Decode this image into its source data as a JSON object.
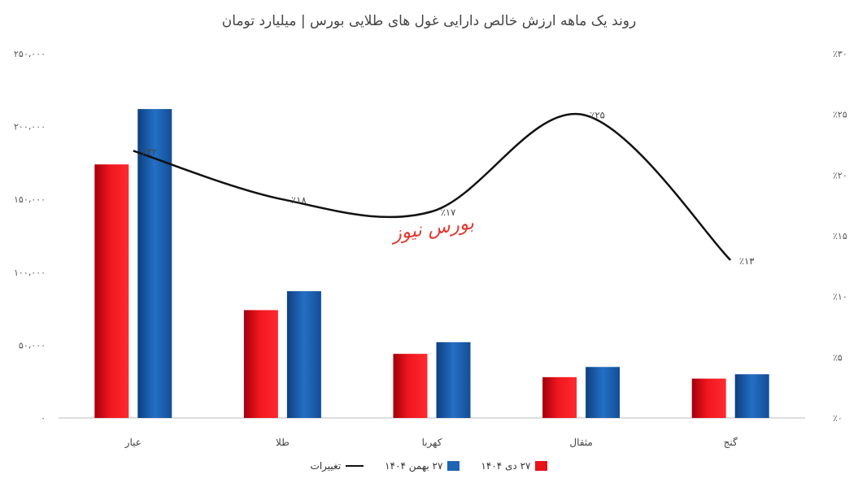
{
  "chart_data": {
    "type": "bar",
    "title": "روند یک ماهه ارزش خالص دارایی غول های طلایی بورس | میلیارد تومان",
    "categories": [
      "عیار",
      "طلا",
      "کهربا",
      "مثقال",
      "گنج"
    ],
    "series": [
      {
        "name": "۲۷ دی ۱۴۰۴",
        "type": "bar",
        "values": [
          174000,
          74000,
          44000,
          28000,
          27000
        ],
        "color": "#e8141c"
      },
      {
        "name": "۲۷ بهمن ۱۴۰۴",
        "type": "bar",
        "values": [
          212000,
          87000,
          52000,
          35000,
          30000
        ],
        "color": "#1f63b5"
      },
      {
        "name": "تغییرات",
        "type": "line",
        "axis": "right",
        "values": [
          22,
          18,
          17,
          25,
          13
        ],
        "labels": [
          "٪۲۲",
          "٪۱۸",
          "٪۱۷",
          "٪۲۵",
          "٪۱۳"
        ],
        "color": "#111111"
      }
    ],
    "y_left": {
      "ylim": [
        0,
        250000
      ],
      "ticks": [
        0,
        50000,
        100000,
        150000,
        200000,
        250000
      ],
      "tick_labels": [
        "۰",
        "۵۰،۰۰۰",
        "۱۰۰،۰۰۰",
        "۱۵۰،۰۰۰",
        "۲۰۰،۰۰۰",
        "۲۵۰،۰۰۰"
      ]
    },
    "y_right": {
      "ylim": [
        0,
        30
      ],
      "ticks": [
        0,
        5,
        10,
        15,
        20,
        25,
        30
      ],
      "tick_labels": [
        "٪۰",
        "٪۵",
        "٪۱۰",
        "٪۱۵",
        "٪۲۰",
        "٪۲۵",
        "٪۳۰"
      ]
    },
    "grid": false,
    "legend_position": "bottom"
  },
  "watermark": "بورس نیوز"
}
